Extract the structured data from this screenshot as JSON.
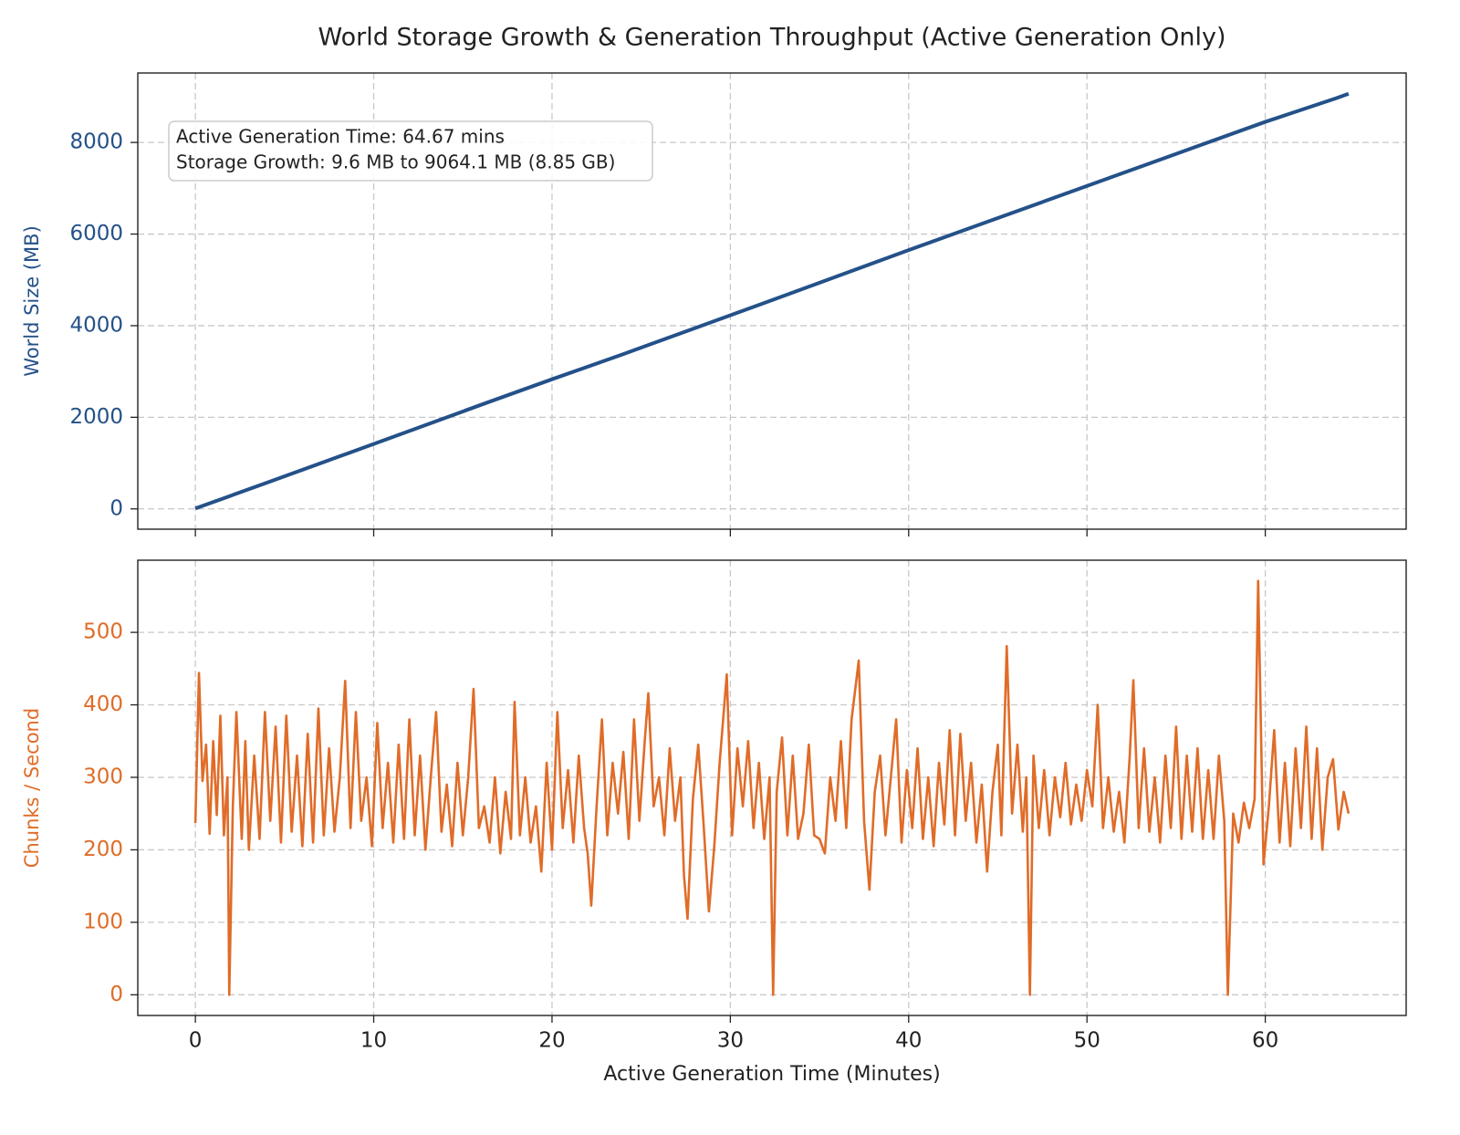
{
  "chart_data": [
    {
      "type": "line",
      "title": "World Storage Growth & Generation Throughput (Active Generation Only)",
      "ylabel": "World Size (MB)",
      "color": "#245189",
      "annotations": [
        "Active Generation Time: 64.67 mins",
        "Storage Growth: 9.6 MB to 9064.1 MB (8.85 GB)"
      ],
      "x": [
        0,
        4,
        8,
        12,
        16,
        20,
        24,
        28,
        32,
        36,
        40,
        44,
        48,
        52,
        56,
        60,
        64,
        64.67
      ],
      "values": [
        9.6,
        570,
        1135,
        1700,
        2270,
        2830,
        3380,
        3945,
        4510,
        5080,
        5650,
        6210,
        6770,
        7330,
        7890,
        8450,
        8970,
        9064.1
      ],
      "xlim": [
        -3.23,
        67.9
      ],
      "ylim": [
        -443,
        9517
      ],
      "xticks": [
        0,
        10,
        20,
        30,
        40,
        50,
        60
      ],
      "yticks": [
        0,
        2000,
        4000,
        6000,
        8000
      ],
      "grid": true
    },
    {
      "type": "line",
      "ylabel": "Chunks / Second",
      "xlabel": "Active Generation Time (Minutes)",
      "color": "#e06c28",
      "x": [
        0,
        0.2,
        0.4,
        0.6,
        0.8,
        1.0,
        1.2,
        1.4,
        1.6,
        1.8,
        1.9,
        2.1,
        2.3,
        2.6,
        2.8,
        3.0,
        3.3,
        3.6,
        3.9,
        4.2,
        4.5,
        4.8,
        5.1,
        5.4,
        5.7,
        6.0,
        6.3,
        6.6,
        6.9,
        7.2,
        7.5,
        7.8,
        8.1,
        8.4,
        8.7,
        9.0,
        9.3,
        9.6,
        9.9,
        10.2,
        10.5,
        10.8,
        11.1,
        11.4,
        11.7,
        12.0,
        12.3,
        12.6,
        12.9,
        13.2,
        13.5,
        13.8,
        14.1,
        14.4,
        14.7,
        15.0,
        15.3,
        15.6,
        15.9,
        16.2,
        16.5,
        16.8,
        17.1,
        17.4,
        17.7,
        17.9,
        18.2,
        18.5,
        18.8,
        19.1,
        19.4,
        19.7,
        20.0,
        20.3,
        20.6,
        20.9,
        21.2,
        21.5,
        21.8,
        22.0,
        22.2,
        22.5,
        22.8,
        23.1,
        23.4,
        23.7,
        24.0,
        24.3,
        24.6,
        24.9,
        25.2,
        25.4,
        25.7,
        26.0,
        26.3,
        26.6,
        26.9,
        27.2,
        27.4,
        27.6,
        27.9,
        28.2,
        28.5,
        28.8,
        29.1,
        29.4,
        29.8,
        30.1,
        30.4,
        30.7,
        31.0,
        31.3,
        31.6,
        31.9,
        32.2,
        32.4,
        32.6,
        32.9,
        33.2,
        33.5,
        33.8,
        34.1,
        34.4,
        34.7,
        35.0,
        35.3,
        35.6,
        35.9,
        36.2,
        36.5,
        36.8,
        37.2,
        37.5,
        37.8,
        38.1,
        38.4,
        38.7,
        39.0,
        39.3,
        39.6,
        39.9,
        40.2,
        40.5,
        40.8,
        41.1,
        41.4,
        41.7,
        42.0,
        42.3,
        42.6,
        42.9,
        43.2,
        43.5,
        43.8,
        44.1,
        44.4,
        44.7,
        45.0,
        45.2,
        45.5,
        45.8,
        46.1,
        46.4,
        46.6,
        46.8,
        47.0,
        47.3,
        47.6,
        47.9,
        48.2,
        48.5,
        48.8,
        49.1,
        49.4,
        49.7,
        50.0,
        50.3,
        50.6,
        50.9,
        51.2,
        51.5,
        51.8,
        52.1,
        52.4,
        52.6,
        52.9,
        53.2,
        53.5,
        53.8,
        54.1,
        54.4,
        54.7,
        55.0,
        55.3,
        55.6,
        55.9,
        56.2,
        56.5,
        56.8,
        57.1,
        57.4,
        57.7,
        57.9,
        58.2,
        58.5,
        58.8,
        59.1,
        59.4,
        59.6,
        59.9,
        60.2,
        60.5,
        60.8,
        61.1,
        61.4,
        61.7,
        62.0,
        62.3,
        62.6,
        62.9,
        63.2,
        63.5,
        63.8,
        64.1,
        64.4,
        64.67
      ],
      "values": [
        237,
        444,
        295,
        345,
        222,
        350,
        248,
        385,
        220,
        300,
        0,
        260,
        390,
        215,
        350,
        200,
        330,
        215,
        390,
        240,
        370,
        210,
        385,
        225,
        330,
        205,
        360,
        210,
        395,
        220,
        340,
        225,
        300,
        433,
        230,
        390,
        240,
        300,
        205,
        375,
        230,
        320,
        210,
        345,
        215,
        380,
        220,
        330,
        200,
        300,
        390,
        225,
        290,
        205,
        320,
        220,
        300,
        422,
        230,
        260,
        210,
        300,
        195,
        280,
        215,
        404,
        220,
        300,
        210,
        260,
        170,
        320,
        200,
        390,
        230,
        310,
        210,
        330,
        230,
        195,
        123,
        260,
        380,
        220,
        320,
        250,
        335,
        215,
        380,
        240,
        350,
        416,
        260,
        300,
        220,
        340,
        240,
        300,
        165,
        105,
        270,
        345,
        235,
        115,
        205,
        320,
        442,
        220,
        340,
        260,
        350,
        230,
        320,
        215,
        300,
        0,
        280,
        355,
        220,
        330,
        215,
        250,
        345,
        220,
        215,
        195,
        300,
        240,
        350,
        230,
        380,
        461,
        240,
        145,
        280,
        330,
        220,
        300,
        380,
        210,
        310,
        230,
        340,
        215,
        300,
        205,
        320,
        235,
        365,
        220,
        360,
        240,
        320,
        210,
        290,
        170,
        280,
        345,
        220,
        481,
        250,
        345,
        225,
        300,
        0,
        330,
        230,
        310,
        220,
        300,
        245,
        320,
        235,
        290,
        240,
        310,
        260,
        400,
        230,
        300,
        225,
        280,
        210,
        330,
        434,
        230,
        340,
        225,
        300,
        210,
        330,
        230,
        370,
        215,
        330,
        225,
        340,
        215,
        310,
        215,
        330,
        240,
        0,
        250,
        210,
        265,
        230,
        270,
        571,
        180,
        260,
        365,
        210,
        320,
        205,
        340,
        230,
        370,
        215,
        340,
        200,
        300,
        325,
        228,
        280,
        250
      ],
      "xlim": [
        -3.23,
        67.9
      ],
      "ylim": [
        -28.55,
        599.55
      ],
      "xticks": [
        0,
        10,
        20,
        30,
        40,
        50,
        60
      ],
      "yticks": [
        0,
        100,
        200,
        300,
        400,
        500
      ],
      "grid": true
    }
  ]
}
